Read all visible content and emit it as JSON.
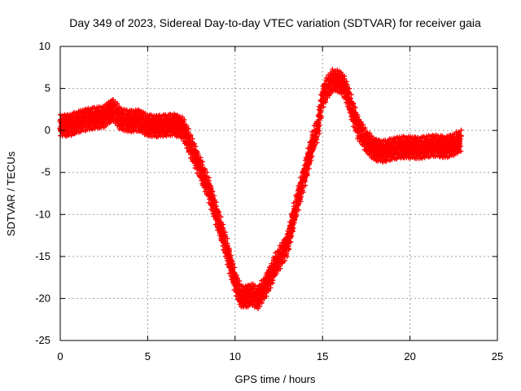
{
  "chart_data": {
    "type": "scatter",
    "title": "Day 349 of 2023, Sidereal Day-to-day VTEC variation (SDTVAR) for receiver gaia",
    "xlabel": "GPS time / hours",
    "ylabel": "SDTVAR / TECUs",
    "xlim": [
      0,
      25
    ],
    "ylim": [
      -25,
      10
    ],
    "xticks": [
      0,
      5,
      10,
      15,
      20,
      25
    ],
    "yticks": [
      10,
      5,
      0,
      -5,
      -10,
      -15,
      -20,
      -25
    ],
    "grid": true,
    "marker": "plus",
    "series": [
      {
        "name": "SDTVAR",
        "color": "#ff0000",
        "spread": 0.8,
        "x": [
          0.0,
          0.5,
          1.0,
          1.5,
          2.0,
          2.5,
          3.0,
          3.5,
          4.0,
          4.5,
          5.0,
          5.5,
          6.0,
          6.5,
          7.0,
          7.5,
          8.0,
          8.5,
          9.0,
          9.5,
          10.0,
          10.3,
          10.6,
          11.0,
          11.3,
          11.6,
          12.0,
          12.3,
          12.6,
          13.0,
          13.5,
          14.0,
          14.5,
          14.7,
          15.0,
          15.3,
          15.6,
          16.0,
          16.3,
          16.6,
          17.0,
          17.5,
          18.0,
          18.5,
          19.0,
          19.5,
          20.0,
          20.5,
          21.0,
          21.5,
          22.0,
          22.5,
          22.9
        ],
        "y": [
          0.6,
          0.6,
          1.0,
          1.3,
          1.5,
          1.6,
          2.5,
          1.3,
          1.1,
          1.2,
          0.6,
          0.5,
          0.6,
          0.7,
          0.3,
          -2.0,
          -4.5,
          -7.0,
          -10.5,
          -14.0,
          -18.0,
          -19.7,
          -19.8,
          -19.5,
          -20.0,
          -19.0,
          -17.5,
          -16.0,
          -15.0,
          -13.5,
          -9.0,
          -5.0,
          -1.0,
          0.0,
          4.0,
          5.2,
          6.0,
          5.8,
          5.0,
          3.0,
          0.5,
          -1.3,
          -2.3,
          -2.5,
          -2.2,
          -2.0,
          -2.0,
          -2.1,
          -1.9,
          -1.8,
          -2.0,
          -1.7,
          -1.2
        ]
      }
    ]
  }
}
